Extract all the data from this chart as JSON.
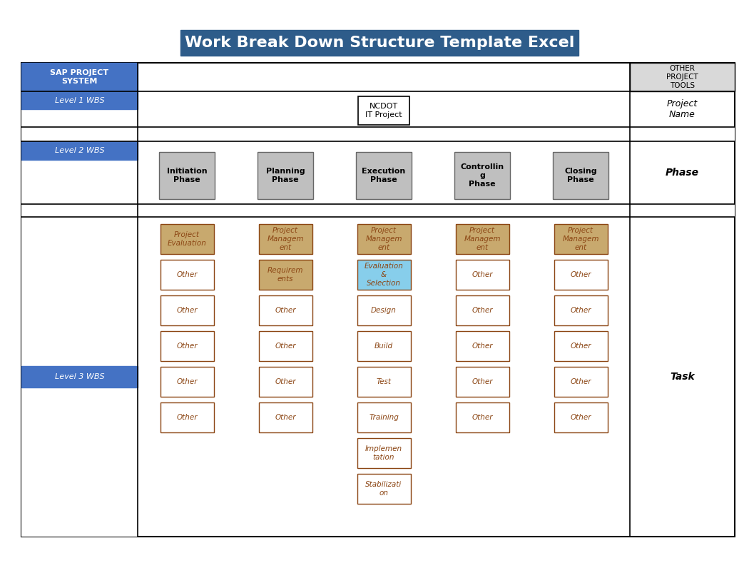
{
  "title": "Work Break Down Structure Template Excel",
  "title_bg": "#2E5C8A",
  "title_color": "#FFFFFF",
  "title_fontsize": 16,
  "level2_phases": [
    {
      "text": "Initiation\nPhase",
      "bg": "#BFBFBF",
      "fg": "#000000"
    },
    {
      "text": "Planning\nPhase",
      "bg": "#BFBFBF",
      "fg": "#000000"
    },
    {
      "text": "Execution\nPhase",
      "bg": "#BFBFBF",
      "fg": "#000000"
    },
    {
      "text": "Controllin\ng\nPhase",
      "bg": "#BFBFBF",
      "fg": "#000000"
    },
    {
      "text": "Closing\nPhase",
      "bg": "#BFBFBF",
      "fg": "#000000"
    }
  ],
  "columns": [
    {
      "tasks": [
        {
          "text": "Project\nEvaluation",
          "bg": "#C8A96E",
          "fg": "#8B4513",
          "border": "#8B4513"
        },
        {
          "text": "Other",
          "bg": "#FFFFFF",
          "fg": "#8B4513",
          "border": "#8B4513"
        },
        {
          "text": "Other",
          "bg": "#FFFFFF",
          "fg": "#8B4513",
          "border": "#8B4513"
        },
        {
          "text": "Other",
          "bg": "#FFFFFF",
          "fg": "#8B4513",
          "border": "#8B4513"
        },
        {
          "text": "Other",
          "bg": "#FFFFFF",
          "fg": "#8B4513",
          "border": "#8B4513"
        },
        {
          "text": "Other",
          "bg": "#FFFFFF",
          "fg": "#8B4513",
          "border": "#8B4513"
        }
      ]
    },
    {
      "tasks": [
        {
          "text": "Project\nManagem\nent",
          "bg": "#C8A96E",
          "fg": "#8B4513",
          "border": "#8B4513"
        },
        {
          "text": "Requirem\nents",
          "bg": "#C8A96E",
          "fg": "#8B4513",
          "border": "#8B4513"
        },
        {
          "text": "Other",
          "bg": "#FFFFFF",
          "fg": "#8B4513",
          "border": "#8B4513"
        },
        {
          "text": "Other",
          "bg": "#FFFFFF",
          "fg": "#8B4513",
          "border": "#8B4513"
        },
        {
          "text": "Other",
          "bg": "#FFFFFF",
          "fg": "#8B4513",
          "border": "#8B4513"
        },
        {
          "text": "Other",
          "bg": "#FFFFFF",
          "fg": "#8B4513",
          "border": "#8B4513"
        }
      ]
    },
    {
      "tasks": [
        {
          "text": "Project\nManagem\nent",
          "bg": "#C8A96E",
          "fg": "#8B4513",
          "border": "#8B4513"
        },
        {
          "text": "Evaluation\n&\nSelection",
          "bg": "#87CEEB",
          "fg": "#8B4513",
          "border": "#8B4513"
        },
        {
          "text": "Design",
          "bg": "#FFFFFF",
          "fg": "#8B4513",
          "border": "#8B4513"
        },
        {
          "text": "Build",
          "bg": "#FFFFFF",
          "fg": "#8B4513",
          "border": "#8B4513"
        },
        {
          "text": "Test",
          "bg": "#FFFFFF",
          "fg": "#8B4513",
          "border": "#8B4513"
        },
        {
          "text": "Training",
          "bg": "#FFFFFF",
          "fg": "#8B4513",
          "border": "#8B4513"
        },
        {
          "text": "Implemen\ntation",
          "bg": "#FFFFFF",
          "fg": "#8B4513",
          "border": "#8B4513"
        },
        {
          "text": "Stabilizati\non",
          "bg": "#FFFFFF",
          "fg": "#8B4513",
          "border": "#8B4513"
        }
      ]
    },
    {
      "tasks": [
        {
          "text": "Project\nManagem\nent",
          "bg": "#C8A96E",
          "fg": "#8B4513",
          "border": "#8B4513"
        },
        {
          "text": "Other",
          "bg": "#FFFFFF",
          "fg": "#8B4513",
          "border": "#8B4513"
        },
        {
          "text": "Other",
          "bg": "#FFFFFF",
          "fg": "#8B4513",
          "border": "#8B4513"
        },
        {
          "text": "Other",
          "bg": "#FFFFFF",
          "fg": "#8B4513",
          "border": "#8B4513"
        },
        {
          "text": "Other",
          "bg": "#FFFFFF",
          "fg": "#8B4513",
          "border": "#8B4513"
        },
        {
          "text": "Other",
          "bg": "#FFFFFF",
          "fg": "#8B4513",
          "border": "#8B4513"
        }
      ]
    },
    {
      "tasks": [
        {
          "text": "Project\nManagem\nent",
          "bg": "#C8A96E",
          "fg": "#8B4513",
          "border": "#8B4513"
        },
        {
          "text": "Other",
          "bg": "#FFFFFF",
          "fg": "#8B4513",
          "border": "#8B4513"
        },
        {
          "text": "Other",
          "bg": "#FFFFFF",
          "fg": "#8B4513",
          "border": "#8B4513"
        },
        {
          "text": "Other",
          "bg": "#FFFFFF",
          "fg": "#8B4513",
          "border": "#8B4513"
        },
        {
          "text": "Other",
          "bg": "#FFFFFF",
          "fg": "#8B4513",
          "border": "#8B4513"
        },
        {
          "text": "Other",
          "bg": "#FFFFFF",
          "fg": "#8B4513",
          "border": "#8B4513"
        }
      ]
    }
  ]
}
